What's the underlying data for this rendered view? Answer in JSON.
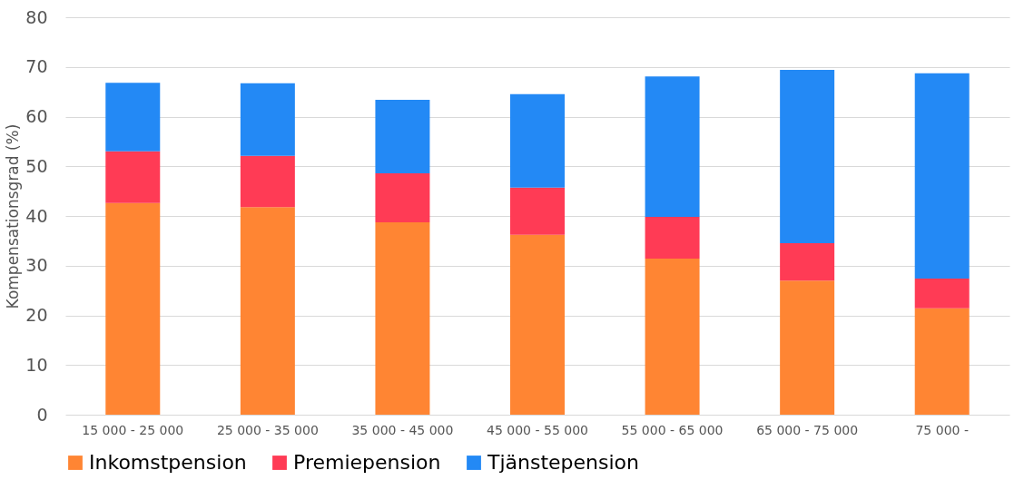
{
  "chart_data": {
    "type": "bar",
    "stacked": true,
    "ylabel": "Kompensationsgrad (%)",
    "categories": [
      "15 000 - 25 000",
      "25 000 - 35 000",
      "35 000 - 45 000",
      "45 000 - 55 000",
      "55 000 - 65 000",
      "65 000 - 75 000",
      "75 000 -"
    ],
    "series": [
      {
        "name": "Inkomstpension",
        "color": "#ff8533",
        "values": [
          42.6,
          41.8,
          38.7,
          36.2,
          31.4,
          27.0,
          21.4
        ]
      },
      {
        "name": "Premiepension",
        "color": "#ff3b55",
        "values": [
          10.4,
          10.3,
          9.9,
          9.5,
          8.4,
          7.5,
          6.0
        ]
      },
      {
        "name": "Tjänstepension",
        "color": "#2389f5",
        "values": [
          13.8,
          14.6,
          14.8,
          18.8,
          28.3,
          34.9,
          41.3
        ]
      }
    ],
    "ylim": [
      0,
      80
    ],
    "yticks": [
      0,
      10,
      20,
      30,
      40,
      50,
      60,
      70,
      80
    ],
    "grid": "y",
    "legend": "bottom"
  }
}
